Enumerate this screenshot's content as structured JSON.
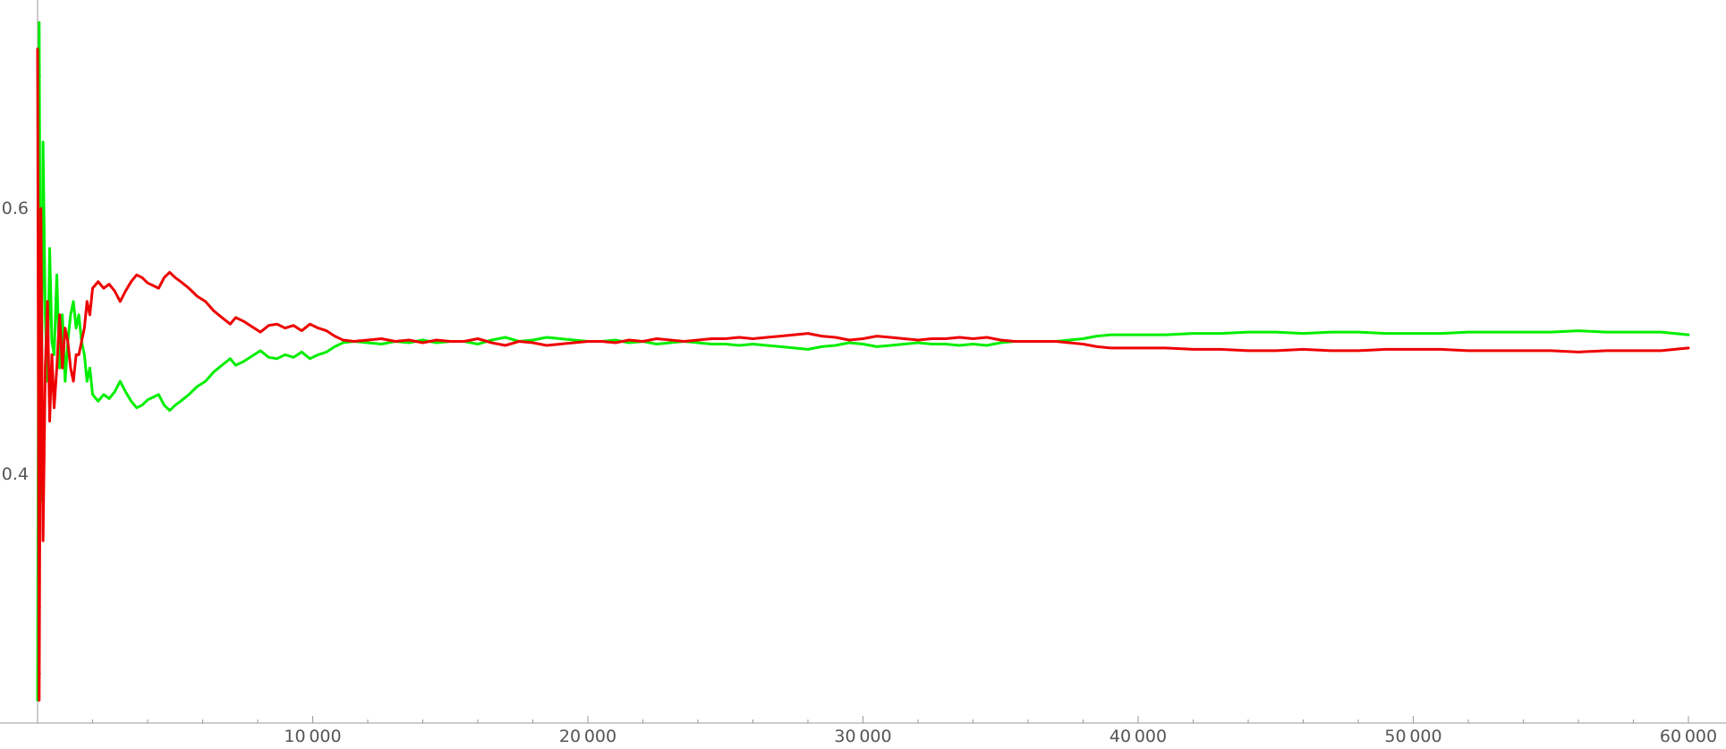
{
  "chart_data": {
    "type": "line",
    "title": "",
    "xlabel": "",
    "ylabel": "",
    "xlim": [
      -1300,
      61300
    ],
    "ylim": [
      0.2,
      0.75
    ],
    "grid": false,
    "legend": "none",
    "x_ticks": [
      {
        "value": 10000,
        "label": "10 000"
      },
      {
        "value": 20000,
        "label": "20 000"
      },
      {
        "value": 30000,
        "label": "30 000"
      },
      {
        "value": 40000,
        "label": "40 000"
      },
      {
        "value": 50000,
        "label": "50 000"
      },
      {
        "value": 60000,
        "label": "60 000"
      }
    ],
    "y_ticks": [
      {
        "value": 0.4,
        "label": "0.4"
      },
      {
        "value": 0.6,
        "label": "0.6"
      }
    ],
    "series": [
      {
        "color": "#00ee00",
        "points": [
          [
            0,
            0.23
          ],
          [
            60,
            0.74
          ],
          [
            120,
            0.38
          ],
          [
            200,
            0.65
          ],
          [
            280,
            0.52
          ],
          [
            360,
            0.47
          ],
          [
            440,
            0.57
          ],
          [
            520,
            0.5
          ],
          [
            600,
            0.49
          ],
          [
            700,
            0.55
          ],
          [
            800,
            0.48
          ],
          [
            900,
            0.52
          ],
          [
            1000,
            0.47
          ],
          [
            1100,
            0.5
          ],
          [
            1200,
            0.52
          ],
          [
            1300,
            0.53
          ],
          [
            1400,
            0.51
          ],
          [
            1500,
            0.52
          ],
          [
            1600,
            0.5
          ],
          [
            1700,
            0.49
          ],
          [
            1800,
            0.47
          ],
          [
            1900,
            0.48
          ],
          [
            2000,
            0.46
          ],
          [
            2200,
            0.455
          ],
          [
            2400,
            0.46
          ],
          [
            2600,
            0.457
          ],
          [
            2800,
            0.462
          ],
          [
            3000,
            0.47
          ],
          [
            3200,
            0.462
          ],
          [
            3400,
            0.455
          ],
          [
            3600,
            0.45
          ],
          [
            3800,
            0.452
          ],
          [
            4000,
            0.456
          ],
          [
            4200,
            0.458
          ],
          [
            4400,
            0.46
          ],
          [
            4600,
            0.452
          ],
          [
            4800,
            0.448
          ],
          [
            5000,
            0.452
          ],
          [
            5200,
            0.455
          ],
          [
            5500,
            0.46
          ],
          [
            5800,
            0.466
          ],
          [
            6100,
            0.47
          ],
          [
            6400,
            0.477
          ],
          [
            6700,
            0.482
          ],
          [
            7000,
            0.487
          ],
          [
            7200,
            0.482
          ],
          [
            7500,
            0.485
          ],
          [
            7800,
            0.489
          ],
          [
            8100,
            0.493
          ],
          [
            8400,
            0.488
          ],
          [
            8700,
            0.487
          ],
          [
            9000,
            0.49
          ],
          [
            9300,
            0.488
          ],
          [
            9600,
            0.492
          ],
          [
            9900,
            0.487
          ],
          [
            10200,
            0.49
          ],
          [
            10500,
            0.492
          ],
          [
            10800,
            0.496
          ],
          [
            11100,
            0.499
          ],
          [
            11500,
            0.5
          ],
          [
            12000,
            0.499
          ],
          [
            12500,
            0.498
          ],
          [
            13000,
            0.5
          ],
          [
            13500,
            0.499
          ],
          [
            14000,
            0.501
          ],
          [
            14500,
            0.499
          ],
          [
            15000,
            0.5
          ],
          [
            15500,
            0.5
          ],
          [
            16000,
            0.498
          ],
          [
            16500,
            0.501
          ],
          [
            17000,
            0.503
          ],
          [
            17500,
            0.5
          ],
          [
            18000,
            0.501
          ],
          [
            18500,
            0.503
          ],
          [
            19000,
            0.502
          ],
          [
            19500,
            0.501
          ],
          [
            20000,
            0.5
          ],
          [
            20500,
            0.5
          ],
          [
            21000,
            0.501
          ],
          [
            21500,
            0.499
          ],
          [
            22000,
            0.5
          ],
          [
            22500,
            0.498
          ],
          [
            23000,
            0.499
          ],
          [
            23500,
            0.5
          ],
          [
            24000,
            0.499
          ],
          [
            24500,
            0.498
          ],
          [
            25000,
            0.498
          ],
          [
            25500,
            0.497
          ],
          [
            26000,
            0.498
          ],
          [
            26500,
            0.497
          ],
          [
            27000,
            0.496
          ],
          [
            27500,
            0.495
          ],
          [
            28000,
            0.494
          ],
          [
            28500,
            0.496
          ],
          [
            29000,
            0.497
          ],
          [
            29500,
            0.499
          ],
          [
            30000,
            0.498
          ],
          [
            30500,
            0.496
          ],
          [
            31000,
            0.497
          ],
          [
            31500,
            0.498
          ],
          [
            32000,
            0.499
          ],
          [
            32500,
            0.498
          ],
          [
            33000,
            0.498
          ],
          [
            33500,
            0.497
          ],
          [
            34000,
            0.498
          ],
          [
            34500,
            0.497
          ],
          [
            35000,
            0.499
          ],
          [
            35500,
            0.5
          ],
          [
            36000,
            0.5
          ],
          [
            36500,
            0.5
          ],
          [
            37000,
            0.5
          ],
          [
            37500,
            0.501
          ],
          [
            38000,
            0.502
          ],
          [
            38500,
            0.504
          ],
          [
            39000,
            0.505
          ],
          [
            40000,
            0.505
          ],
          [
            41000,
            0.505
          ],
          [
            42000,
            0.506
          ],
          [
            43000,
            0.506
          ],
          [
            44000,
            0.507
          ],
          [
            45000,
            0.507
          ],
          [
            46000,
            0.506
          ],
          [
            47000,
            0.507
          ],
          [
            48000,
            0.507
          ],
          [
            49000,
            0.506
          ],
          [
            50000,
            0.506
          ],
          [
            51000,
            0.506
          ],
          [
            52000,
            0.507
          ],
          [
            53000,
            0.507
          ],
          [
            54000,
            0.507
          ],
          [
            55000,
            0.507
          ],
          [
            56000,
            0.508
          ],
          [
            57000,
            0.507
          ],
          [
            58000,
            0.507
          ],
          [
            59000,
            0.507
          ],
          [
            60000,
            0.505
          ]
        ]
      },
      {
        "color": "#ee0000",
        "points": [
          [
            0,
            0.72
          ],
          [
            60,
            0.23
          ],
          [
            120,
            0.6
          ],
          [
            200,
            0.35
          ],
          [
            280,
            0.48
          ],
          [
            360,
            0.53
          ],
          [
            440,
            0.44
          ],
          [
            520,
            0.49
          ],
          [
            600,
            0.45
          ],
          [
            700,
            0.48
          ],
          [
            800,
            0.52
          ],
          [
            900,
            0.48
          ],
          [
            1000,
            0.51
          ],
          [
            1100,
            0.5
          ],
          [
            1200,
            0.48
          ],
          [
            1300,
            0.47
          ],
          [
            1400,
            0.49
          ],
          [
            1500,
            0.49
          ],
          [
            1600,
            0.5
          ],
          [
            1700,
            0.51
          ],
          [
            1800,
            0.53
          ],
          [
            1900,
            0.52
          ],
          [
            2000,
            0.54
          ],
          [
            2200,
            0.545
          ],
          [
            2400,
            0.54
          ],
          [
            2600,
            0.543
          ],
          [
            2800,
            0.538
          ],
          [
            3000,
            0.53
          ],
          [
            3200,
            0.538
          ],
          [
            3400,
            0.545
          ],
          [
            3600,
            0.55
          ],
          [
            3800,
            0.548
          ],
          [
            4000,
            0.544
          ],
          [
            4200,
            0.542
          ],
          [
            4400,
            0.54
          ],
          [
            4600,
            0.548
          ],
          [
            4800,
            0.552
          ],
          [
            5000,
            0.548
          ],
          [
            5200,
            0.545
          ],
          [
            5500,
            0.54
          ],
          [
            5800,
            0.534
          ],
          [
            6100,
            0.53
          ],
          [
            6400,
            0.523
          ],
          [
            6700,
            0.518
          ],
          [
            7000,
            0.513
          ],
          [
            7200,
            0.518
          ],
          [
            7500,
            0.515
          ],
          [
            7800,
            0.511
          ],
          [
            8100,
            0.507
          ],
          [
            8400,
            0.512
          ],
          [
            8700,
            0.513
          ],
          [
            9000,
            0.51
          ],
          [
            9300,
            0.512
          ],
          [
            9600,
            0.508
          ],
          [
            9900,
            0.513
          ],
          [
            10200,
            0.51
          ],
          [
            10500,
            0.508
          ],
          [
            10800,
            0.504
          ],
          [
            11100,
            0.501
          ],
          [
            11500,
            0.5
          ],
          [
            12000,
            0.501
          ],
          [
            12500,
            0.502
          ],
          [
            13000,
            0.5
          ],
          [
            13500,
            0.501
          ],
          [
            14000,
            0.499
          ],
          [
            14500,
            0.501
          ],
          [
            15000,
            0.5
          ],
          [
            15500,
            0.5
          ],
          [
            16000,
            0.502
          ],
          [
            16500,
            0.499
          ],
          [
            17000,
            0.497
          ],
          [
            17500,
            0.5
          ],
          [
            18000,
            0.499
          ],
          [
            18500,
            0.497
          ],
          [
            19000,
            0.498
          ],
          [
            19500,
            0.499
          ],
          [
            20000,
            0.5
          ],
          [
            20500,
            0.5
          ],
          [
            21000,
            0.499
          ],
          [
            21500,
            0.501
          ],
          [
            22000,
            0.5
          ],
          [
            22500,
            0.502
          ],
          [
            23000,
            0.501
          ],
          [
            23500,
            0.5
          ],
          [
            24000,
            0.501
          ],
          [
            24500,
            0.502
          ],
          [
            25000,
            0.502
          ],
          [
            25500,
            0.503
          ],
          [
            26000,
            0.502
          ],
          [
            26500,
            0.503
          ],
          [
            27000,
            0.504
          ],
          [
            27500,
            0.505
          ],
          [
            28000,
            0.506
          ],
          [
            28500,
            0.504
          ],
          [
            29000,
            0.503
          ],
          [
            29500,
            0.501
          ],
          [
            30000,
            0.502
          ],
          [
            30500,
            0.504
          ],
          [
            31000,
            0.503
          ],
          [
            31500,
            0.502
          ],
          [
            32000,
            0.501
          ],
          [
            32500,
            0.502
          ],
          [
            33000,
            0.502
          ],
          [
            33500,
            0.503
          ],
          [
            34000,
            0.502
          ],
          [
            34500,
            0.503
          ],
          [
            35000,
            0.501
          ],
          [
            35500,
            0.5
          ],
          [
            36000,
            0.5
          ],
          [
            36500,
            0.5
          ],
          [
            37000,
            0.5
          ],
          [
            37500,
            0.499
          ],
          [
            38000,
            0.498
          ],
          [
            38500,
            0.496
          ],
          [
            39000,
            0.495
          ],
          [
            40000,
            0.495
          ],
          [
            41000,
            0.495
          ],
          [
            42000,
            0.494
          ],
          [
            43000,
            0.494
          ],
          [
            44000,
            0.493
          ],
          [
            45000,
            0.493
          ],
          [
            46000,
            0.494
          ],
          [
            47000,
            0.493
          ],
          [
            48000,
            0.493
          ],
          [
            49000,
            0.494
          ],
          [
            50000,
            0.494
          ],
          [
            51000,
            0.494
          ],
          [
            52000,
            0.493
          ],
          [
            53000,
            0.493
          ],
          [
            54000,
            0.493
          ],
          [
            55000,
            0.493
          ],
          [
            56000,
            0.492
          ],
          [
            57000,
            0.493
          ],
          [
            58000,
            0.493
          ],
          [
            59000,
            0.493
          ],
          [
            60000,
            0.495
          ]
        ]
      }
    ]
  }
}
